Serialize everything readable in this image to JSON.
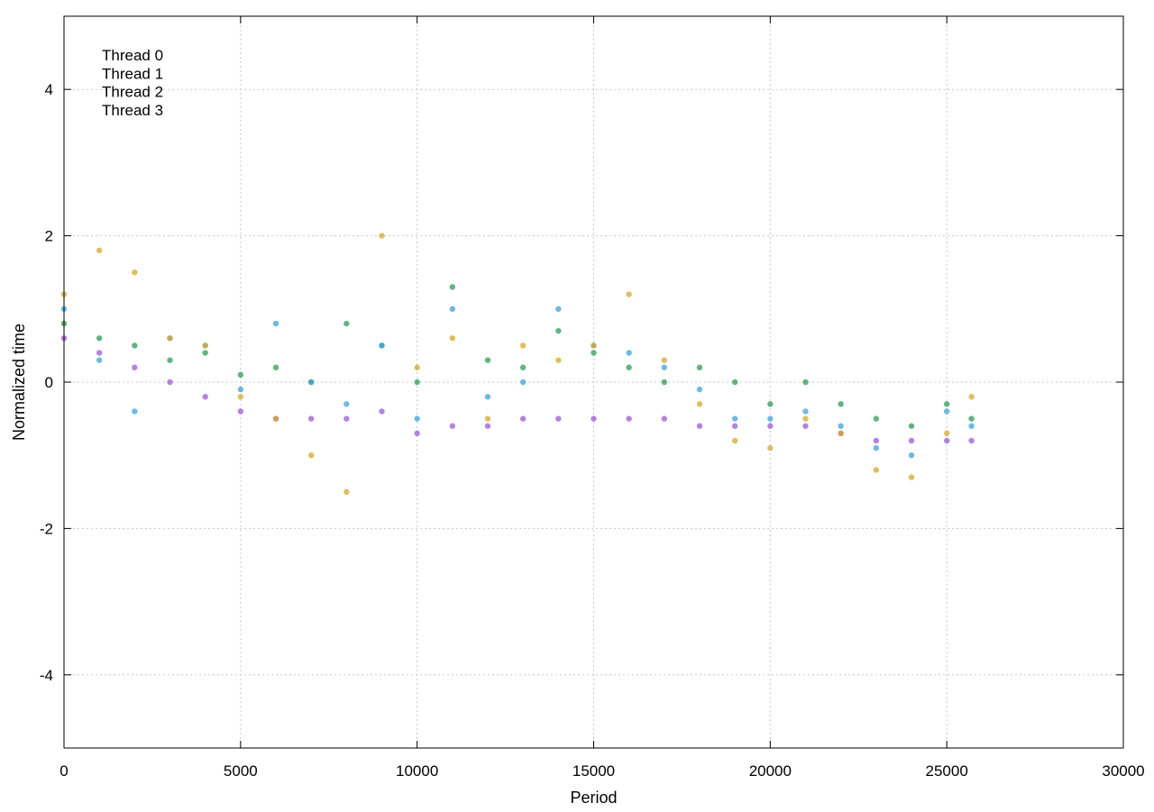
{
  "chart_data": {
    "type": "scatter",
    "title": "",
    "xlabel": "Period",
    "ylabel": "Normalized time",
    "xlim": [
      0,
      30000
    ],
    "ylim": [
      -5,
      5
    ],
    "x_ticks": [
      0,
      5000,
      10000,
      15000,
      20000,
      25000,
      30000
    ],
    "x_tick_labels": [
      "0",
      "5000",
      "10000",
      "15000",
      "20000",
      "25000",
      "30000"
    ],
    "y_ticks": [
      -4,
      -2,
      0,
      2,
      4
    ],
    "y_tick_labels": [
      "-4",
      "-2",
      "0",
      "2",
      "4"
    ],
    "grid": true,
    "legend_position": "top-left",
    "legend_labels": [
      "Thread 0",
      "Thread 1",
      "Thread 2",
      "Thread 3"
    ],
    "series": [
      {
        "name": "Thread 0",
        "color": "#9b59d6",
        "x": [
          0,
          1000,
          2000,
          3000,
          4000,
          5000,
          6000,
          7000,
          8000,
          9000,
          10000,
          11000,
          12000,
          13000,
          14000,
          15000,
          16000,
          17000,
          18000,
          19000,
          20000,
          21000,
          22000,
          23000,
          24000,
          25000,
          25700
        ],
        "y": [
          0.6,
          0.4,
          0.2,
          0.0,
          -0.2,
          -0.4,
          -0.5,
          -0.5,
          -0.5,
          -0.4,
          -0.7,
          -0.6,
          -0.6,
          -0.5,
          -0.5,
          -0.5,
          -0.5,
          -0.5,
          -0.6,
          -0.6,
          -0.6,
          -0.6,
          -0.7,
          -0.8,
          -0.8,
          -0.8,
          -0.8
        ]
      },
      {
        "name": "Thread 1",
        "color": "#2e9b57",
        "x": [
          0,
          1000,
          2000,
          3000,
          4000,
          5000,
          6000,
          7000,
          8000,
          9000,
          10000,
          11000,
          12000,
          13000,
          14000,
          15000,
          16000,
          17000,
          18000,
          19000,
          20000,
          21000,
          22000,
          23000,
          24000,
          25000,
          25700
        ],
        "y": [
          0.8,
          0.6,
          0.5,
          0.3,
          0.4,
          0.1,
          0.2,
          0.0,
          0.8,
          0.5,
          0.0,
          1.3,
          0.3,
          0.2,
          0.7,
          0.4,
          0.2,
          0.0,
          0.2,
          0.0,
          -0.3,
          0.0,
          -0.3,
          -0.5,
          -0.6,
          -0.3,
          -0.5
        ]
      },
      {
        "name": "Thread 2",
        "color": "#3da3d8",
        "x": [
          0,
          1000,
          2000,
          3000,
          4000,
          5000,
          6000,
          7000,
          8000,
          9000,
          10000,
          11000,
          12000,
          13000,
          14000,
          15000,
          16000,
          17000,
          18000,
          19000,
          20000,
          21000,
          22000,
          23000,
          24000,
          25000,
          25700
        ],
        "y": [
          1.0,
          0.3,
          -0.4,
          0.6,
          0.5,
          -0.1,
          0.8,
          0.0,
          -0.3,
          0.5,
          -0.5,
          1.0,
          -0.2,
          0.0,
          1.0,
          0.5,
          0.4,
          0.2,
          -0.1,
          -0.5,
          -0.5,
          -0.4,
          -0.6,
          -0.9,
          -1.0,
          -0.4,
          -0.6
        ]
      },
      {
        "name": "Thread 3",
        "color": "#d4a72c",
        "x": [
          0,
          1000,
          2000,
          3000,
          4000,
          5000,
          6000,
          7000,
          8000,
          9000,
          10000,
          11000,
          12000,
          13000,
          14000,
          15000,
          16000,
          17000,
          18000,
          19000,
          20000,
          21000,
          22000,
          23000,
          24000,
          25000,
          25700
        ],
        "y": [
          1.2,
          1.8,
          1.5,
          0.6,
          0.5,
          -0.2,
          -0.5,
          -1.0,
          -1.5,
          2.0,
          0.2,
          0.6,
          -0.5,
          0.5,
          0.3,
          0.5,
          1.2,
          0.3,
          -0.3,
          -0.8,
          -0.9,
          -0.5,
          -0.7,
          -1.2,
          -1.3,
          -0.7,
          -0.2
        ]
      }
    ]
  }
}
